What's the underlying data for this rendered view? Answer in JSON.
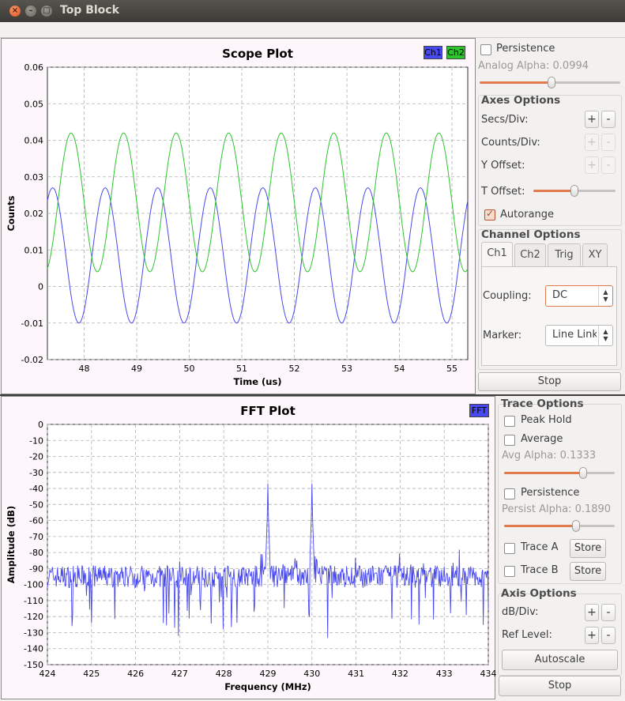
{
  "window": {
    "title": "Top Block"
  },
  "scope": {
    "title": "Scope Plot",
    "xlabel": "Time (us)",
    "ylabel": "Counts",
    "legend": [
      {
        "label": "Ch1",
        "color": "#4848f0"
      },
      {
        "label": "Ch2",
        "color": "#2ec42e"
      }
    ],
    "yticks": [
      "0.06",
      "0.05",
      "0.04",
      "0.03",
      "0.02",
      "0.01",
      "0",
      "-0.01",
      "-0.02"
    ],
    "xticks": [
      "48",
      "49",
      "50",
      "51",
      "52",
      "53",
      "54",
      "55"
    ],
    "controls": {
      "persistence": "Persistence",
      "persistence_checked": false,
      "analog_alpha": "Analog Alpha: 0.0994",
      "analog_alpha_value": 0.0994,
      "axes_options": "Axes Options",
      "secs_div": "Secs/Div:",
      "counts_div": "Counts/Div:",
      "y_offset": "Y Offset:",
      "t_offset": "T Offset:",
      "autorange": "Autorange",
      "autorange_checked": true,
      "channel_options": "Channel Options",
      "tabs": [
        "Ch1",
        "Ch2",
        "Trig",
        "XY"
      ],
      "coupling_label": "Coupling:",
      "coupling_value": "DC",
      "marker_label": "Marker:",
      "marker_value": "Line Link",
      "stop": "Stop"
    }
  },
  "fft": {
    "title": "FFT Plot",
    "xlabel": "Frequency (MHz)",
    "ylabel": "Amplitude (dB)",
    "legend": [
      {
        "label": "FFT",
        "color": "#4848f0"
      }
    ],
    "yticks": [
      "0",
      "-10",
      "-20",
      "-30",
      "-40",
      "-50",
      "-60",
      "-70",
      "-80",
      "-90",
      "-100",
      "-110",
      "-120",
      "-130",
      "-140",
      "-150"
    ],
    "xticks": [
      "424",
      "425",
      "426",
      "427",
      "428",
      "429",
      "430",
      "431",
      "432",
      "433",
      "434"
    ],
    "controls": {
      "trace_options": "Trace Options",
      "peak_hold": "Peak Hold",
      "average": "Average",
      "avg_alpha": "Avg Alpha: 0.1333",
      "avg_alpha_value": 0.1333,
      "persistence": "Persistence",
      "persist_alpha": "Persist Alpha: 0.1890",
      "persist_alpha_value": 0.189,
      "trace_a": "Trace A",
      "trace_b": "Trace B",
      "store": "Store",
      "axis_options": "Axis Options",
      "db_div": "dB/Div:",
      "ref_level": "Ref Level:",
      "autoscale": "Autoscale",
      "stop": "Stop"
    }
  },
  "chart_data": [
    {
      "type": "line",
      "title": "Scope Plot",
      "xlabel": "Time (us)",
      "ylabel": "Counts",
      "xlim": [
        47.3,
        55.3
      ],
      "ylim": [
        -0.02,
        0.06
      ],
      "grid": true,
      "legend": "top-right",
      "series": [
        {
          "name": "Ch1",
          "color": "#4848f0",
          "shape": "periodic",
          "period_us": 1.0,
          "min": -0.01,
          "max": 0.027,
          "first_peak_at": 47.4
        },
        {
          "name": "Ch2",
          "color": "#2ec42e",
          "shape": "periodic",
          "period_us": 1.0,
          "min": 0.004,
          "max": 0.042,
          "first_peak_at": 47.75
        }
      ]
    },
    {
      "type": "line",
      "title": "FFT Plot",
      "xlabel": "Frequency (MHz)",
      "ylabel": "Amplitude (dB)",
      "xlim": [
        424,
        434
      ],
      "ylim": [
        -150,
        0
      ],
      "grid": true,
      "legend": "top-right",
      "series": [
        {
          "name": "FFT",
          "color": "#4848f0",
          "noise_floor_db": -95,
          "peaks": [
            {
              "x": 429,
              "y": -37
            },
            {
              "x": 430,
              "y": -37
            }
          ]
        }
      ]
    }
  ]
}
